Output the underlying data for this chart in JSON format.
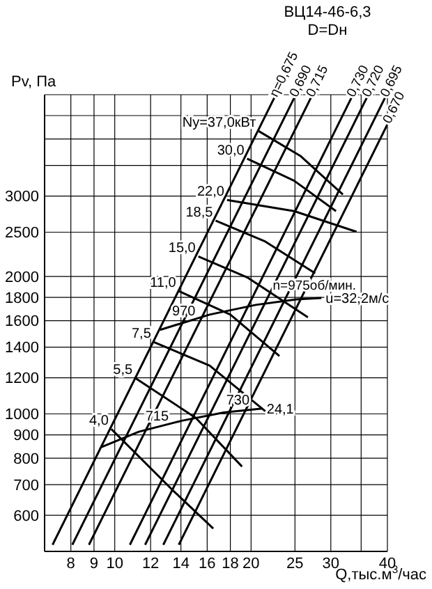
{
  "chart_data": {
    "type": "line",
    "title": "ВЦ14-46-6,3",
    "subtitle": "D=Dн",
    "xlabel": "Q,тыс.м$^{3}$/час",
    "ylabel": "Pv, Па",
    "log": "xy",
    "grid": true,
    "legend": false,
    "marker": "none",
    "line_style": "solid",
    "xlim": [
      7,
      40
    ],
    "xticks": [
      8,
      9,
      10,
      12,
      14,
      16,
      18,
      20,
      25,
      30,
      {
        "value": 35,
        "label": null
      },
      40
    ],
    "ylim": [
      500,
      5000
    ],
    "yticks": [
      600,
      700,
      800,
      900,
      1000,
      1200,
      1400,
      1600,
      1800,
      2000,
      2500,
      3000,
      {
        "value": 3500,
        "label": null
      },
      {
        "value": 4000,
        "label": null
      },
      {
        "value": 4500,
        "label": null
      },
      {
        "value": 5000,
        "label": null
      }
    ],
    "series": [
      {
        "name": "n=975об/мин.",
        "color": "#000000",
        "x": [
          12.6,
          16.2,
          20.5,
          25.2,
          28.6
        ],
        "values": [
          1528,
          1650,
          1733,
          1781,
          1794
        ]
      },
      {
        "color": "#000000",
        "x": [
          9.35,
          11.3,
          14.05,
          17.4,
          21.2
        ],
        "values": [
          846,
          914,
          966,
          1007,
          1028
        ]
      },
      {
        "name": "Ny=37,0кВт",
        "color": "#000000",
        "x": [
          20.8,
          25.7,
          31.9
        ],
        "values": [
          4160,
          3672,
          3022
        ]
      },
      {
        "name": "30,0",
        "color": "#000000",
        "x": [
          19.6,
          24.9,
          30.8
        ],
        "values": [
          3623,
          3240,
          2780
        ]
      },
      {
        "name": "22,0",
        "color": "#000000",
        "x": [
          17.7,
          24.9,
          34.2
        ],
        "values": [
          2940,
          2780,
          2505
        ]
      },
      {
        "name": "18,5",
        "color": "#000000",
        "x": [
          16.7,
          21.5,
          27.7
        ],
        "values": [
          2649,
          2385,
          2032
        ]
      },
      {
        "name": "15,0",
        "color": "#000000",
        "x": [
          15.3,
          19.6,
          26.7
        ],
        "values": [
          2211,
          1991,
          1627
        ]
      },
      {
        "name": "11,0",
        "color": "#000000",
        "x": [
          13.85,
          18.0,
          23.1
        ],
        "values": [
          1857,
          1650,
          1339
        ]
      },
      {
        "name": "7,5",
        "color": "#000000",
        "x": [
          12.2,
          16.2,
          21.5
        ],
        "values": [
          1436,
          1276,
          1014
        ]
      },
      {
        "name": "5,5",
        "color": "#000000",
        "x": [
          11.1,
          15.1,
          19.1
        ],
        "values": [
          1198,
          980,
          767
        ]
      },
      {
        "name": "4,0",
        "color": "#000000",
        "x": [
          9.83,
          13.4,
          16.5
        ],
        "values": [
          926,
          682,
          561
        ]
      },
      {
        "name": "η=0,675",
        "color": "#000000",
        "x": [
          7.29,
          22.5
        ],
        "values": [
          517,
          4920
        ]
      },
      {
        "name": "0,690",
        "color": "#000000",
        "x": [
          8.06,
          24.9
        ],
        "values": [
          517,
          4920
        ]
      },
      {
        "name": "0,715",
        "color": "#000000",
        "x": [
          8.77,
          27.1
        ],
        "values": [
          517,
          4920
        ]
      },
      {
        "name": "0,730",
        "color": "#000000",
        "x": [
          10.8,
          33.3
        ],
        "values": [
          517,
          4920
        ]
      },
      {
        "name": "0,720",
        "color": "#000000",
        "x": [
          11.67,
          36.0
        ],
        "values": [
          517,
          4920
        ]
      },
      {
        "name": "0,695",
        "color": "#000000",
        "x": [
          12.8,
          39.5
        ],
        "values": [
          517,
          4920
        ]
      },
      {
        "name": "0,670",
        "color": "#000000",
        "x": [
          13.85,
          40
        ],
        "values": [
          517,
          4306
        ]
      }
    ],
    "annotations": [
      {
        "text": "u=32,2м/с",
        "x": 28.6,
        "y": 1794
      },
      {
        "text": "970",
        "x": 14.2,
        "y": 1585
      },
      {
        "text": "715",
        "x": 12.4,
        "y": 935
      },
      {
        "text": "730",
        "x": 18.7,
        "y": 1014
      },
      {
        "text": "24,1",
        "x": 21.2,
        "y": 1028
      }
    ]
  }
}
